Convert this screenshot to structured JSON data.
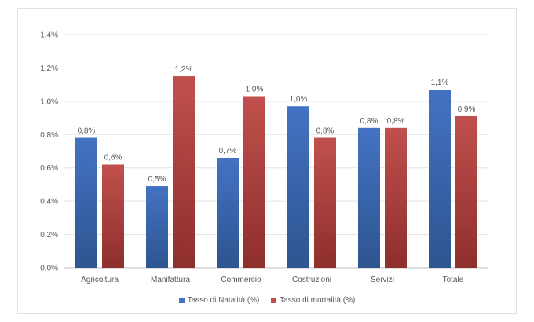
{
  "chart_data": {
    "type": "bar",
    "title": "",
    "xlabel": "",
    "ylabel": "",
    "categories": [
      "Agricoltura",
      "Manifattura",
      "Commercio",
      "Costruzioni",
      "Servizi",
      "Totale"
    ],
    "ylim": [
      0,
      1.4
    ],
    "yticks": [
      0.0,
      0.2,
      0.4,
      0.6,
      0.8,
      1.0,
      1.2,
      1.4
    ],
    "ytick_labels": [
      "0,0%",
      "0,2%",
      "0,4%",
      "0,6%",
      "0,8%",
      "1,0%",
      "1,2%",
      "1,4%"
    ],
    "grid": true,
    "legend_position": "bottom",
    "series": [
      {
        "name": "Tasso di Natalità (%)",
        "color": "#4472c4",
        "values": [
          0.78,
          0.49,
          0.66,
          0.97,
          0.84,
          1.07
        ],
        "labels": [
          "0,8%",
          "0,5%",
          "0,7%",
          "1,0%",
          "0,8%",
          "1,1%"
        ]
      },
      {
        "name": "Tasso di mortalità (%)",
        "color": "#c0504d",
        "values": [
          0.62,
          1.15,
          1.03,
          0.78,
          0.84,
          0.91
        ],
        "labels": [
          "0,6%",
          "1,2%",
          "1,0%",
          "0,8%",
          "0,8%",
          "0,9%"
        ]
      }
    ]
  }
}
